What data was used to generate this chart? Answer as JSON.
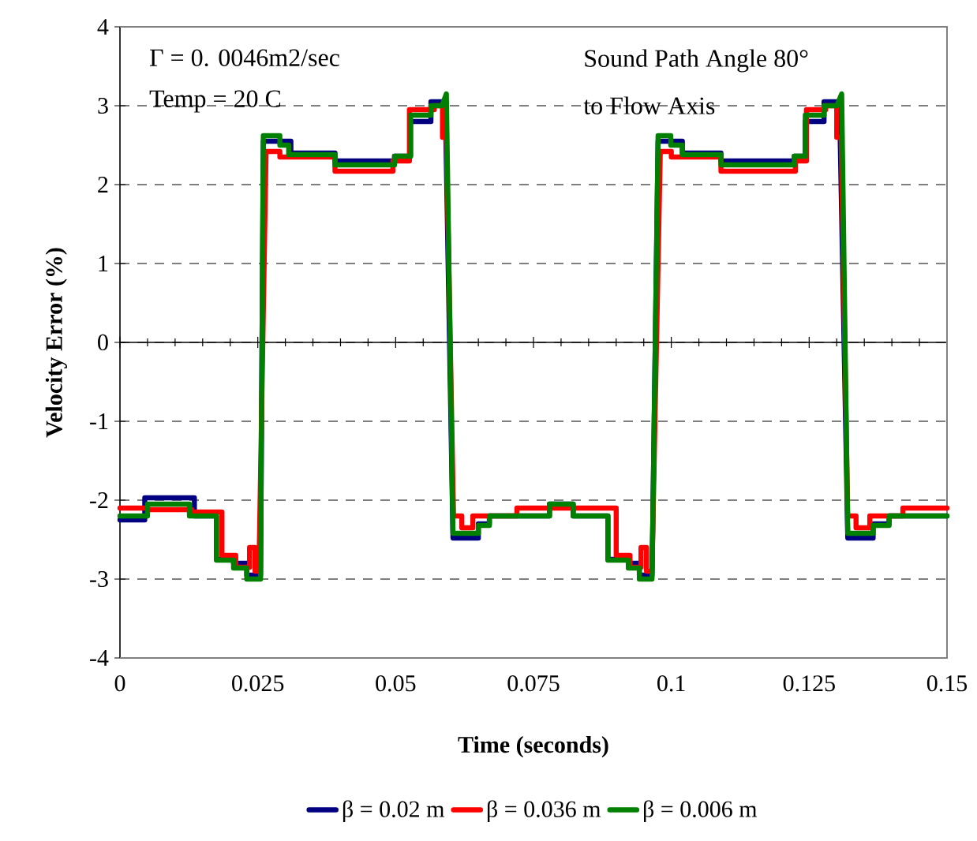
{
  "chart_data": {
    "type": "line",
    "xlabel": "Time (seconds)",
    "ylabel": "Velocity Error (%)",
    "annotations": [
      "Γ = 0. 0046m2/sec",
      "Temp  = 20 C",
      "Sound Path Angle 80°",
      "to Flow Axis"
    ],
    "xlim": [
      0,
      0.15
    ],
    "ylim": [
      -4,
      4
    ],
    "xticks": [
      0,
      0.025,
      0.05,
      0.075,
      0.1,
      0.125,
      0.15
    ],
    "yticks": [
      -4,
      -3,
      -2,
      -1,
      0,
      1,
      2,
      3,
      4
    ],
    "grid": "y",
    "legend": "bottom",
    "line_style": "solid",
    "marker": "none",
    "series": [
      {
        "name": "β = 0.02 m",
        "color": "#000080",
        "x": [
          0,
          0.0045,
          0.0045,
          0.0135,
          0.0135,
          0.0175,
          0.0175,
          0.0206,
          0.0206,
          0.023,
          0.023,
          0.0255,
          0.026,
          0.029,
          0.029,
          0.031,
          0.031,
          0.039,
          0.039,
          0.0498,
          0.0498,
          0.0527,
          0.0527,
          0.0564,
          0.0564,
          0.059,
          0.0604,
          0.065,
          0.065,
          0.067,
          0.067,
          0.0779,
          0.0779,
          0.0822,
          0.0822,
          0.0885,
          0.0885,
          0.0922,
          0.0922,
          0.0942,
          0.0942,
          0.0965,
          0.0976,
          0.0999,
          0.0999,
          0.102,
          0.102,
          0.109,
          0.109,
          0.1223,
          0.1223,
          0.1243,
          0.1243,
          0.1277,
          0.1277,
          0.1305,
          0.132,
          0.1366,
          0.1366,
          0.1395,
          0.1395,
          0.15
        ],
        "values": [
          -2.25,
          -2.25,
          -1.97,
          -1.97,
          -2.2,
          -2.2,
          -2.75,
          -2.75,
          -2.8,
          -2.8,
          -2.95,
          -2.95,
          2.55,
          2.55,
          2.55,
          2.55,
          2.4,
          2.4,
          2.3,
          2.3,
          2.36,
          2.36,
          2.8,
          2.8,
          3.05,
          3.05,
          -2.48,
          -2.48,
          -2.3,
          -2.3,
          -2.2,
          -2.2,
          -2.05,
          -2.05,
          -2.2,
          -2.2,
          -2.75,
          -2.75,
          -2.8,
          -2.8,
          -2.95,
          -2.95,
          2.55,
          2.55,
          2.55,
          2.55,
          2.4,
          2.4,
          2.3,
          2.3,
          2.36,
          2.36,
          2.8,
          2.8,
          3.05,
          3.05,
          -2.48,
          -2.48,
          -2.3,
          -2.3,
          -2.2,
          -2.2
        ]
      },
      {
        "name": "β = 0.036 m",
        "color": "#ff0000",
        "x": [
          0,
          0.005,
          0.005,
          0.013,
          0.013,
          0.0185,
          0.0185,
          0.021,
          0.021,
          0.0235,
          0.0235,
          0.0245,
          0.0245,
          0.0252,
          0.0265,
          0.029,
          0.029,
          0.039,
          0.039,
          0.0495,
          0.0495,
          0.0525,
          0.0525,
          0.057,
          0.057,
          0.0585,
          0.0585,
          0.0592,
          0.0605,
          0.062,
          0.062,
          0.064,
          0.064,
          0.072,
          0.072,
          0.09,
          0.09,
          0.0925,
          0.0925,
          0.0945,
          0.0945,
          0.0955,
          0.0955,
          0.0965,
          0.098,
          0.1,
          0.1,
          0.109,
          0.109,
          0.1225,
          0.1225,
          0.1245,
          0.1245,
          0.128,
          0.128,
          0.13,
          0.13,
          0.1308,
          0.132,
          0.1335,
          0.1335,
          0.136,
          0.136,
          0.142,
          0.142,
          0.15
        ],
        "values": [
          -2.1,
          -2.1,
          -2.12,
          -2.12,
          -2.15,
          -2.15,
          -2.7,
          -2.7,
          -2.85,
          -2.85,
          -2.6,
          -2.6,
          -2.9,
          -2.9,
          2.42,
          2.42,
          2.35,
          2.35,
          2.17,
          2.17,
          2.3,
          2.3,
          2.95,
          2.95,
          3.0,
          3.0,
          2.6,
          2.6,
          -2.2,
          -2.2,
          -2.35,
          -2.35,
          -2.2,
          -2.2,
          -2.1,
          -2.1,
          -2.7,
          -2.7,
          -2.85,
          -2.85,
          -2.6,
          -2.6,
          -2.9,
          -2.9,
          2.42,
          2.42,
          2.35,
          2.35,
          2.17,
          2.17,
          2.3,
          2.3,
          2.95,
          2.95,
          3.0,
          3.0,
          2.6,
          2.6,
          -2.2,
          -2.2,
          -2.35,
          -2.35,
          -2.2,
          -2.2,
          -2.1,
          -2.1
        ]
      },
      {
        "name": "β = 0.006 m",
        "color": "#008000",
        "x": [
          0,
          0.005,
          0.005,
          0.0126,
          0.0126,
          0.0175,
          0.0175,
          0.0206,
          0.0206,
          0.023,
          0.023,
          0.0255,
          0.026,
          0.029,
          0.029,
          0.0306,
          0.0306,
          0.039,
          0.039,
          0.0498,
          0.0498,
          0.0527,
          0.0527,
          0.0564,
          0.0564,
          0.0584,
          0.0592,
          0.0604,
          0.065,
          0.065,
          0.067,
          0.067,
          0.0779,
          0.0779,
          0.0822,
          0.0822,
          0.0885,
          0.0885,
          0.0922,
          0.0922,
          0.0942,
          0.0942,
          0.0965,
          0.0976,
          0.0999,
          0.0999,
          0.102,
          0.102,
          0.109,
          0.109,
          0.1223,
          0.1223,
          0.1243,
          0.1243,
          0.1277,
          0.1277,
          0.13,
          0.1309,
          0.132,
          0.1366,
          0.1366,
          0.1395,
          0.1395,
          0.15
        ],
        "values": [
          -2.2,
          -2.2,
          -2.05,
          -2.05,
          -2.2,
          -2.2,
          -2.76,
          -2.76,
          -2.86,
          -2.86,
          -3.0,
          -3.0,
          2.62,
          2.62,
          2.5,
          2.5,
          2.38,
          2.38,
          2.25,
          2.25,
          2.36,
          2.36,
          2.88,
          2.88,
          3.0,
          3.0,
          3.15,
          -2.42,
          -2.42,
          -2.32,
          -2.32,
          -2.2,
          -2.2,
          -2.05,
          -2.05,
          -2.2,
          -2.2,
          -2.76,
          -2.76,
          -2.86,
          -2.86,
          -3.0,
          -3.0,
          2.62,
          2.62,
          2.5,
          2.5,
          2.38,
          2.38,
          2.25,
          2.25,
          2.36,
          2.36,
          2.88,
          2.88,
          3.0,
          3.0,
          3.15,
          -2.42,
          -2.42,
          -2.32,
          -2.32,
          -2.2,
          -2.2
        ]
      }
    ]
  }
}
